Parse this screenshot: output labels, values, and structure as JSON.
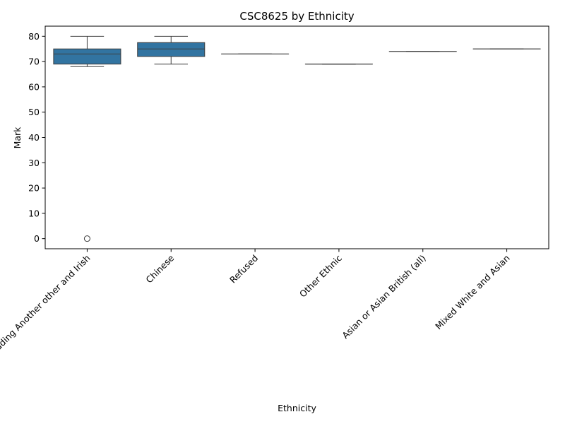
{
  "chart_data": {
    "type": "box",
    "title": "CSC8625 by Ethnicity",
    "xlabel": "Ethnicity",
    "ylabel": "Mark",
    "ylim": [
      -4,
      84
    ],
    "yticks": [
      0,
      10,
      20,
      30,
      40,
      50,
      60,
      70,
      80
    ],
    "box_color": "#3274a1",
    "line_color": "#3f3f3f",
    "grid": false,
    "categories": [
      {
        "name": "White including Another other and Irish",
        "min": 68,
        "q1": 69,
        "median": 73,
        "q3": 75,
        "max": 80,
        "outliers": [
          0
        ]
      },
      {
        "name": "Chinese",
        "min": 69,
        "q1": 72,
        "median": 75,
        "q3": 77.5,
        "max": 80,
        "outliers": []
      },
      {
        "name": "Refused",
        "min": 73,
        "q1": 73,
        "median": 73,
        "q3": 73,
        "max": 73,
        "outliers": []
      },
      {
        "name": "Other Ethnic",
        "min": 69,
        "q1": 69,
        "median": 69,
        "q3": 69,
        "max": 69,
        "outliers": []
      },
      {
        "name": "Asian or Asian British (all)",
        "min": 74,
        "q1": 74,
        "median": 74,
        "q3": 74,
        "max": 74,
        "outliers": []
      },
      {
        "name": "Mixed White and Asian",
        "min": 75,
        "q1": 75,
        "median": 75,
        "q3": 75,
        "max": 75,
        "outliers": []
      }
    ]
  }
}
